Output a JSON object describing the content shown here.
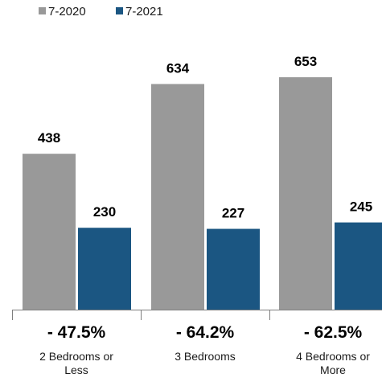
{
  "chart_data": {
    "type": "bar",
    "title": "",
    "xlabel": "",
    "ylabel": "",
    "ylim": [
      0,
      700
    ],
    "grid": false,
    "legend_position": "top-left",
    "categories": [
      [
        "2 Bedrooms or",
        "Less"
      ],
      [
        "3 Bedrooms"
      ],
      [
        "4 Bedrooms or",
        "More"
      ]
    ],
    "series": [
      {
        "name": "7-2020",
        "color": "#999999",
        "values": [
          438,
          634,
          653
        ]
      },
      {
        "name": "7-2021",
        "color": "#1b5682",
        "values": [
          230,
          227,
          245
        ]
      }
    ],
    "changes": [
      "- 47.5%",
      "- 64.2%",
      "- 62.5%"
    ]
  }
}
